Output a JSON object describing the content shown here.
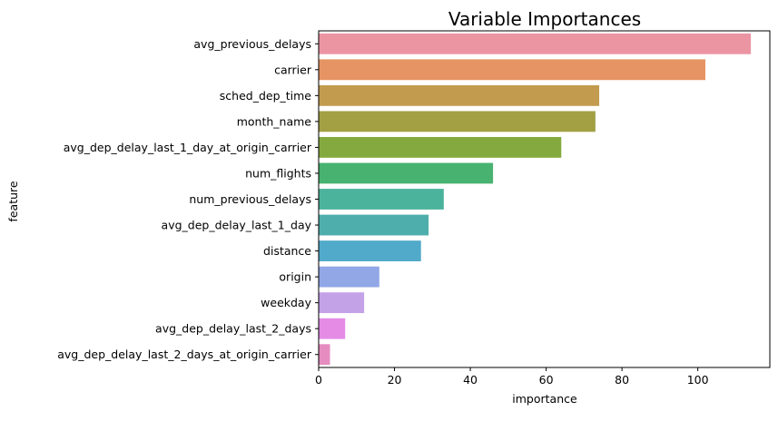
{
  "chart_data": {
    "type": "bar",
    "orientation": "horizontal",
    "title": "Variable Importances",
    "xlabel": "importance",
    "ylabel": "feature",
    "xlim": [
      0,
      119
    ],
    "xticks": [
      0,
      20,
      40,
      60,
      80,
      100
    ],
    "grid": false,
    "legend": "none",
    "categories": [
      "avg_previous_delays",
      "carrier",
      "sched_dep_time",
      "month_name",
      "avg_dep_delay_last_1_day_at_origin_carrier",
      "num_flights",
      "num_previous_delays",
      "avg_dep_delay_last_1_day",
      "distance",
      "origin",
      "weekday",
      "avg_dep_delay_last_2_days",
      "avg_dep_delay_last_2_days_at_origin_carrier"
    ],
    "values": [
      114,
      102,
      74,
      73,
      64,
      46,
      33,
      29,
      27,
      16,
      12,
      7,
      3
    ],
    "colors": [
      "#eb95a3",
      "#e69463",
      "#c29b4f",
      "#a3a044",
      "#84a93f",
      "#48b270",
      "#4bb39c",
      "#4daeab",
      "#51aac9",
      "#91a7e6",
      "#c4a2e8",
      "#e58be6",
      "#e58dc0"
    ]
  }
}
